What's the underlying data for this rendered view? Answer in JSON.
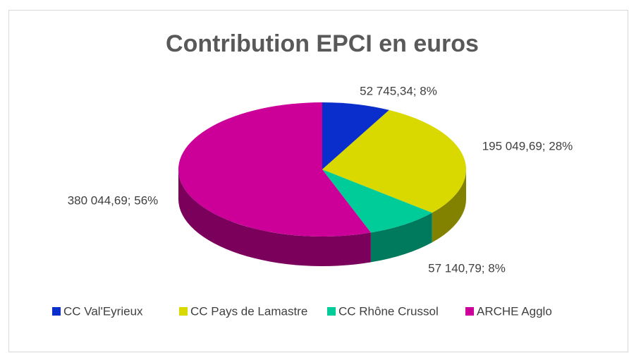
{
  "chart_data": {
    "type": "pie",
    "title": "Contribution EPCI en euros",
    "categories": [
      "CC Val'Eyrieux",
      "CC Pays de Lamastre",
      "CC Rhône Crussol",
      "ARCHE Agglo"
    ],
    "values": [
      52745.34,
      195049.69,
      57140.79,
      380044.69
    ],
    "value_labels": [
      "52 745,34; 8%",
      "195 049,69; 28%",
      "57 140,79; 8%",
      "380 044,69; 56%"
    ],
    "colors": [
      "#0a2ecc",
      "#d9d900",
      "#00cc99",
      "#cc0099"
    ],
    "legend": "bottom"
  }
}
